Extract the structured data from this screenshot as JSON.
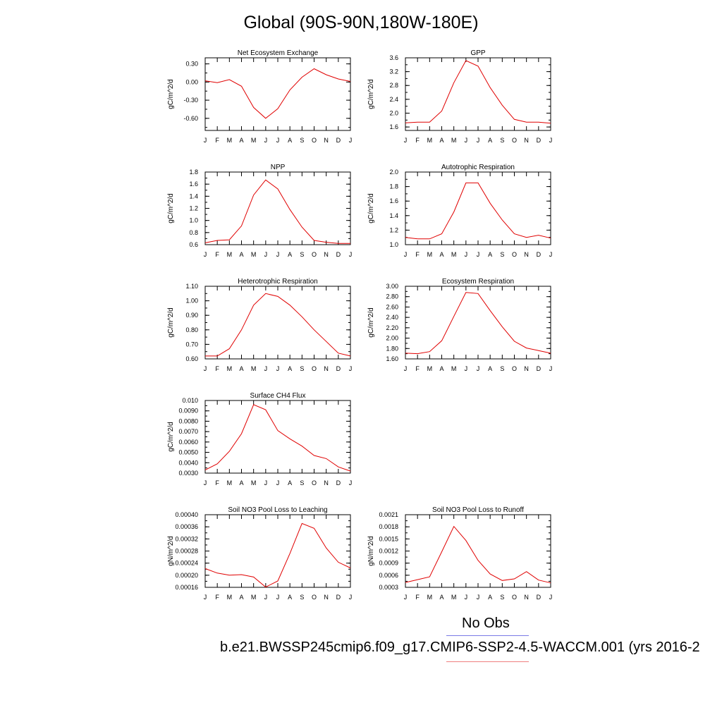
{
  "title": "Global (90S-90N,180W-180E)",
  "legend": {
    "obs_label": "No Obs",
    "case_label": "b.e21.BWSSP245cmip6.f09_g17.CMIP6-SSP2-4.5-WACCM.001 (yrs 2016-2",
    "obs_color": "#7a7ae6",
    "case_color": "#f08080"
  },
  "chart_data": [
    {
      "type": "line",
      "title": "Net Ecosystem Exchange",
      "ylabel": "gC/m^2/d",
      "x": [
        "J",
        "F",
        "M",
        "A",
        "M",
        "J",
        "J",
        "A",
        "S",
        "O",
        "N",
        "D",
        "J"
      ],
      "ylim": [
        -0.8,
        0.4
      ],
      "yticks": [
        "0.30",
        "0.00",
        "-0.30",
        "-0.60"
      ],
      "ytick_values": [
        0.3,
        0.0,
        -0.3,
        -0.6
      ],
      "series": [
        {
          "color": "#e00000",
          "values": [
            0.02,
            -0.01,
            0.04,
            -0.07,
            -0.42,
            -0.6,
            -0.44,
            -0.13,
            0.08,
            0.22,
            0.12,
            0.05,
            0.01
          ]
        }
      ]
    },
    {
      "type": "line",
      "title": "GPP",
      "ylabel": "gC/m^2/d",
      "x": [
        "J",
        "F",
        "M",
        "A",
        "M",
        "J",
        "J",
        "A",
        "S",
        "O",
        "N",
        "D",
        "J"
      ],
      "ylim": [
        1.5,
        3.6
      ],
      "yticks": [
        "3.6",
        "3.2",
        "2.8",
        "2.4",
        "2.0",
        "1.6"
      ],
      "ytick_values": [
        3.6,
        3.2,
        2.8,
        2.4,
        2.0,
        1.6
      ],
      "series": [
        {
          "color": "#e00000",
          "values": [
            1.72,
            1.74,
            1.74,
            2.06,
            2.88,
            3.52,
            3.36,
            2.74,
            2.23,
            1.82,
            1.74,
            1.74,
            1.71
          ]
        }
      ]
    },
    {
      "type": "line",
      "title": "NPP",
      "ylabel": "gC/m^2/d",
      "x": [
        "J",
        "F",
        "M",
        "A",
        "M",
        "J",
        "J",
        "A",
        "S",
        "O",
        "N",
        "D",
        "J"
      ],
      "ylim": [
        0.6,
        1.8
      ],
      "yticks": [
        "1.8",
        "1.6",
        "1.4",
        "1.2",
        "1.0",
        "0.8",
        "0.6"
      ],
      "ytick_values": [
        1.8,
        1.6,
        1.4,
        1.2,
        1.0,
        0.8,
        0.6
      ],
      "series": [
        {
          "color": "#e00000",
          "values": [
            0.63,
            0.67,
            0.68,
            0.91,
            1.42,
            1.67,
            1.52,
            1.18,
            0.89,
            0.67,
            0.64,
            0.62,
            0.62
          ]
        }
      ]
    },
    {
      "type": "line",
      "title": "Autotrophic Respiration",
      "ylabel": "gC/m^2/d",
      "x": [
        "J",
        "F",
        "M",
        "A",
        "M",
        "J",
        "J",
        "A",
        "S",
        "O",
        "N",
        "D",
        "J"
      ],
      "ylim": [
        1.0,
        2.0
      ],
      "yticks": [
        "2.0",
        "1.8",
        "1.6",
        "1.4",
        "1.2",
        "1.0"
      ],
      "ytick_values": [
        2.0,
        1.8,
        1.6,
        1.4,
        1.2,
        1.0
      ],
      "series": [
        {
          "color": "#e00000",
          "values": [
            1.1,
            1.08,
            1.08,
            1.15,
            1.45,
            1.85,
            1.85,
            1.57,
            1.34,
            1.15,
            1.1,
            1.13,
            1.09
          ]
        }
      ]
    },
    {
      "type": "line",
      "title": "Heterotrophic Respiration",
      "ylabel": "gC/m^2/d",
      "x": [
        "J",
        "F",
        "M",
        "A",
        "M",
        "J",
        "J",
        "A",
        "S",
        "O",
        "N",
        "D",
        "J"
      ],
      "ylim": [
        0.6,
        1.1
      ],
      "yticks": [
        "1.10",
        "1.00",
        "0.90",
        "0.80",
        "0.70",
        "0.60"
      ],
      "ytick_values": [
        1.1,
        1.0,
        0.9,
        0.8,
        0.7,
        0.6
      ],
      "series": [
        {
          "color": "#e00000",
          "values": [
            0.62,
            0.62,
            0.67,
            0.8,
            0.97,
            1.05,
            1.03,
            0.97,
            0.89,
            0.8,
            0.72,
            0.64,
            0.62
          ]
        }
      ]
    },
    {
      "type": "line",
      "title": "Ecosystem Respiration",
      "ylabel": "gC/m^2/d",
      "x": [
        "J",
        "F",
        "M",
        "A",
        "M",
        "J",
        "J",
        "A",
        "S",
        "O",
        "N",
        "D",
        "J"
      ],
      "ylim": [
        1.6,
        3.0
      ],
      "yticks": [
        "3.00",
        "2.80",
        "2.60",
        "2.40",
        "2.20",
        "2.00",
        "1.80",
        "1.60"
      ],
      "ytick_values": [
        3.0,
        2.8,
        2.6,
        2.4,
        2.2,
        2.0,
        1.8,
        1.6
      ],
      "series": [
        {
          "color": "#e00000",
          "values": [
            1.71,
            1.7,
            1.74,
            1.95,
            2.42,
            2.88,
            2.86,
            2.53,
            2.22,
            1.94,
            1.81,
            1.76,
            1.71
          ]
        }
      ]
    },
    {
      "type": "line",
      "title": "Surface CH4 Flux",
      "ylabel": "gC/m^2/d",
      "x": [
        "J",
        "F",
        "M",
        "A",
        "M",
        "J",
        "J",
        "A",
        "S",
        "O",
        "N",
        "D",
        "J"
      ],
      "ylim": [
        0.003,
        0.01
      ],
      "yticks": [
        "0.010",
        "0.0090",
        "0.0080",
        "0.0070",
        "0.0060",
        "0.0050",
        "0.0040",
        "0.0030"
      ],
      "ytick_values": [
        0.01,
        0.009,
        0.008,
        0.007,
        0.006,
        0.005,
        0.004,
        0.003
      ],
      "series": [
        {
          "color": "#e00000",
          "values": [
            0.0033,
            0.0039,
            0.0051,
            0.0068,
            0.0096,
            0.0091,
            0.0071,
            0.0063,
            0.0056,
            0.0047,
            0.0044,
            0.0036,
            0.0032
          ]
        }
      ]
    },
    {
      "type": "line",
      "title": "Soil NO3 Pool Loss to Leaching",
      "ylabel": "gN/m^2/d",
      "x": [
        "J",
        "F",
        "M",
        "A",
        "M",
        "J",
        "J",
        "A",
        "S",
        "O",
        "N",
        "D",
        "J"
      ],
      "ylim": [
        0.00016,
        0.0004
      ],
      "yticks": [
        "0.00040",
        "0.00036",
        "0.00032",
        "0.00028",
        "0.00024",
        "0.00020",
        "0.00016"
      ],
      "ytick_values": [
        0.0004,
        0.00036,
        0.00032,
        0.00028,
        0.00024,
        0.0002,
        0.00016
      ],
      "series": [
        {
          "color": "#e00000",
          "values": [
            0.000222,
            0.000207,
            0.0002,
            0.000202,
            0.000194,
            0.000161,
            0.000181,
            0.000272,
            0.000371,
            0.000355,
            0.00029,
            0.000243,
            0.000224
          ]
        }
      ]
    },
    {
      "type": "line",
      "title": "Soil NO3 Pool Loss to Runoff",
      "ylabel": "gN/m^2/d",
      "x": [
        "J",
        "F",
        "M",
        "A",
        "M",
        "J",
        "J",
        "A",
        "S",
        "O",
        "N",
        "D",
        "J"
      ],
      "ylim": [
        0.0003,
        0.0021
      ],
      "yticks": [
        "0.0021",
        "0.0018",
        "0.0015",
        "0.0012",
        "0.0009",
        "0.0006",
        "0.0003"
      ],
      "ytick_values": [
        0.0021,
        0.0018,
        0.0015,
        0.0012,
        0.0009,
        0.0006,
        0.0003
      ],
      "series": [
        {
          "color": "#e00000",
          "values": [
            0.00042,
            0.00049,
            0.00056,
            0.00118,
            0.00181,
            0.00146,
            0.00097,
            0.00063,
            0.00047,
            0.00051,
            0.00069,
            0.00048,
            0.00041
          ]
        }
      ]
    }
  ]
}
